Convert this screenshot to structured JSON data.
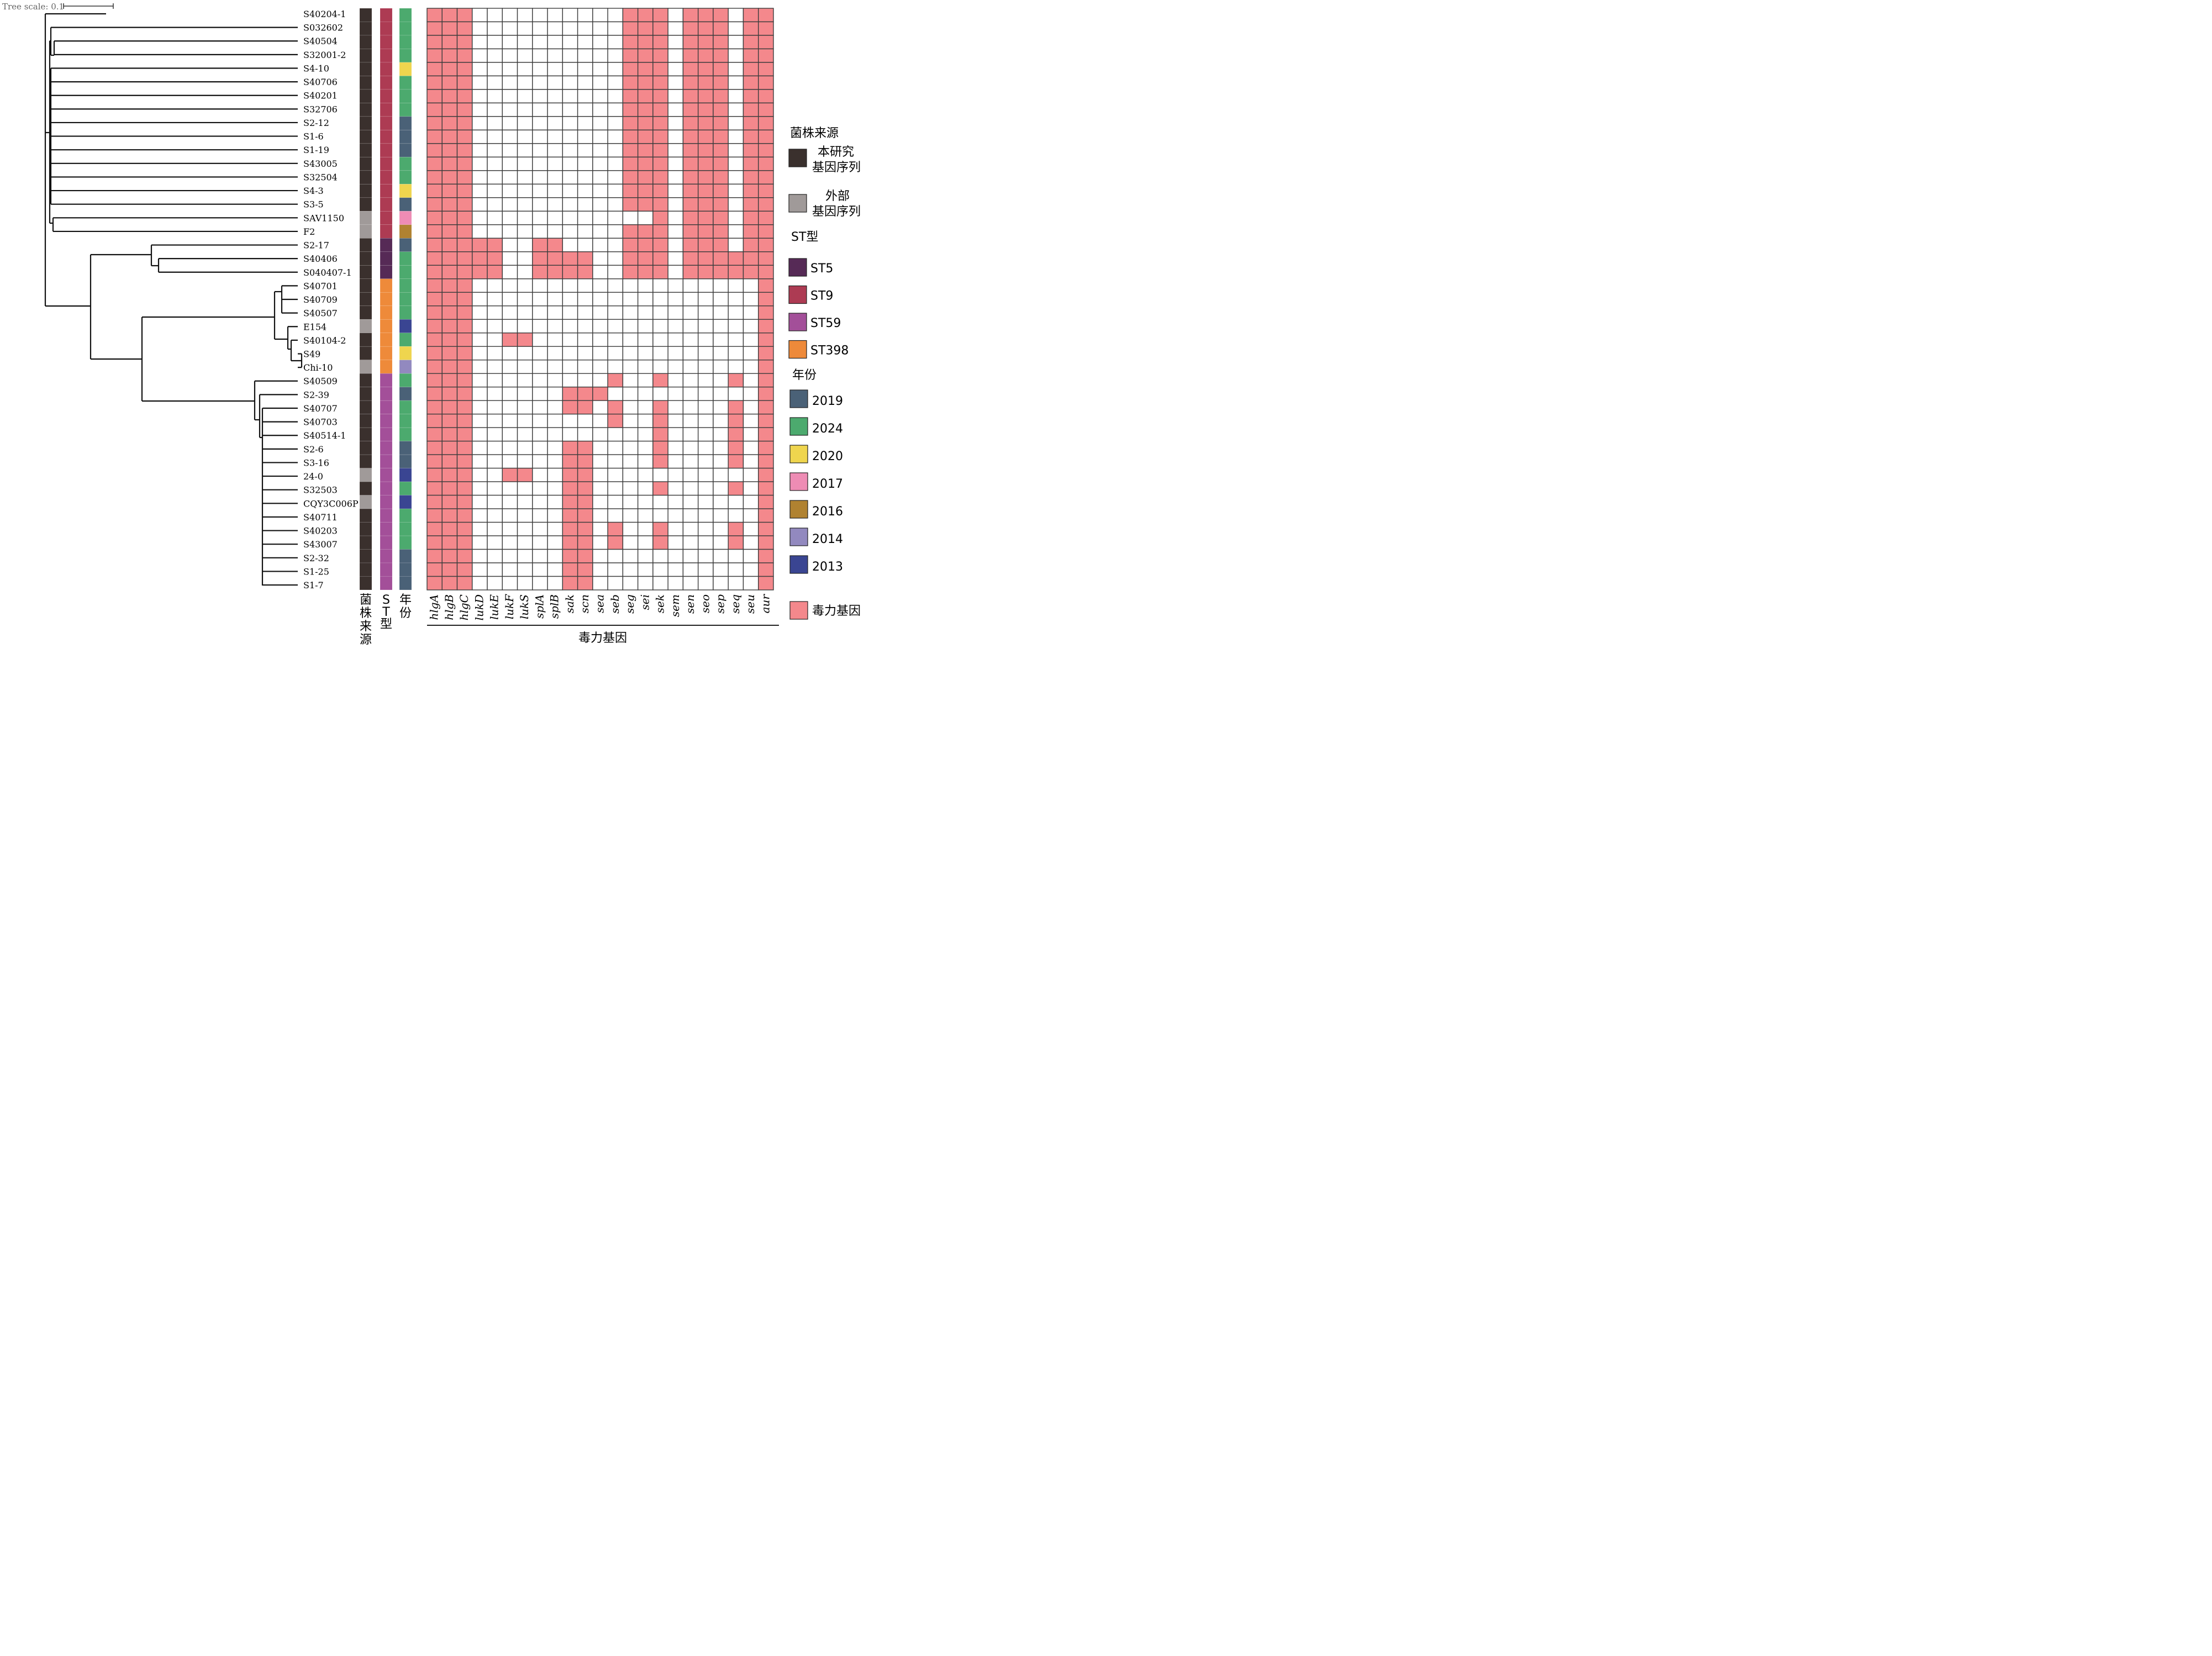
{
  "tree_scale": {
    "label": "Tree scale: 0.1"
  },
  "strains": [
    "S40204-1",
    "S032602",
    "S40504",
    "S32001-2",
    "S4-10",
    "S40706",
    "S40201",
    "S32706",
    "S2-12",
    "S1-6",
    "S1-19",
    "S43005",
    "S32504",
    "S4-3",
    "S3-5",
    "SAV1150",
    "F2",
    "S2-17",
    "S40406",
    "S040407-1",
    "S40701",
    "S40709",
    "S40507",
    "E154",
    "S40104-2",
    "S49",
    "Chi-10",
    "S40509",
    "S2-39",
    "S40707",
    "S40703",
    "S40514-1",
    "S2-6",
    "S3-16",
    "24-0",
    "S32503",
    "CQY3C006P",
    "S40711",
    "S40203",
    "S43007",
    "S2-32",
    "S1-25",
    "S1-7"
  ],
  "strain_source": [
    "study",
    "study",
    "study",
    "study",
    "study",
    "study",
    "study",
    "study",
    "study",
    "study",
    "study",
    "study",
    "study",
    "study",
    "study",
    "external",
    "external",
    "study",
    "study",
    "study",
    "study",
    "study",
    "study",
    "external",
    "study",
    "study",
    "external",
    "study",
    "study",
    "study",
    "study",
    "study",
    "study",
    "study",
    "external",
    "study",
    "external",
    "study",
    "study",
    "study",
    "study",
    "study",
    "study"
  ],
  "st_type": [
    "ST9",
    "ST9",
    "ST9",
    "ST9",
    "ST9",
    "ST9",
    "ST9",
    "ST9",
    "ST9",
    "ST9",
    "ST9",
    "ST9",
    "ST9",
    "ST9",
    "ST9",
    "ST9",
    "ST9",
    "ST5",
    "ST5",
    "ST5",
    "ST398",
    "ST398",
    "ST398",
    "ST398",
    "ST398",
    "ST398",
    "ST398",
    "ST59",
    "ST59",
    "ST59",
    "ST59",
    "ST59",
    "ST59",
    "ST59",
    "ST59",
    "ST59",
    "ST59",
    "ST59",
    "ST59",
    "ST59",
    "ST59",
    "ST59",
    "ST59"
  ],
  "year": [
    "2024",
    "2024",
    "2024",
    "2024",
    "2020",
    "2024",
    "2024",
    "2024",
    "2019",
    "2019",
    "2019",
    "2024",
    "2024",
    "2020",
    "2019",
    "2017",
    "2016",
    "2019",
    "2024",
    "2024",
    "2024",
    "2024",
    "2024",
    "2013",
    "2024",
    "2020",
    "2014",
    "2024",
    "2019",
    "2024",
    "2024",
    "2024",
    "2019",
    "2019",
    "2013",
    "2024",
    "2013",
    "2024",
    "2024",
    "2024",
    "2019",
    "2019",
    "2019"
  ],
  "column_labels": {
    "source": "菌株来源",
    "st": "ST型",
    "year": "年份"
  },
  "genes": [
    "hlgA",
    "hlgB",
    "hlgC",
    "lukD",
    "lukE",
    "lukF",
    "lukS",
    "splA",
    "splB",
    "sak",
    "scn",
    "sea",
    "seb",
    "seg",
    "sei",
    "sek",
    "sem",
    "sen",
    "seo",
    "sep",
    "seq",
    "seu",
    "aur"
  ],
  "gene_axis_label": "毒力基因",
  "matrix": [
    "11100000000001110111011",
    "11100000000001110111011",
    "11100000000001110111011",
    "11100000000001110111011",
    "11100000000001110111011",
    "11100000000001110111011",
    "11100000000001110111011",
    "11100000000001110111011",
    "11100000000001110111011",
    "11100000000001110111011",
    "11100000000001110111011",
    "11100000000001110111011",
    "11100000000001110111011",
    "11100000000001110111011",
    "11100000000001110111011",
    "11100000000000010111011",
    "11100000000001110111011",
    "11111001100001110111011",
    "11111001111001110111111",
    "11111001111001110111111",
    "11100000000000000000001",
    "11100000000000000000001",
    "11100000000000000000001",
    "11100000000000000000001",
    "11100110000000000000001",
    "11100000000000000000001",
    "11100000000000000000001",
    "11100000000010010000101",
    "11100000011100000000001",
    "11100000011010010000101",
    "11100000000010010000101",
    "11100000000000010000101",
    "11100000011000010000101",
    "11100000011000010000101",
    "11100110011000000000001",
    "11100000011000010000101",
    "11100000011000000000001",
    "11100000011000000000001",
    "11100000011010010000101",
    "11100000011010010000101",
    "11100000011000000000001",
    "11100000011000000000001",
    "11100000011000000000001"
  ],
  "legend": {
    "source_title": "菌株来源",
    "source_items": [
      {
        "key": "study",
        "label_lines": [
          "本研究",
          "基因序列"
        ],
        "color": "#3a302d"
      },
      {
        "key": "external",
        "label_lines": [
          "外部",
          "基因序列"
        ],
        "color": "#a09a99"
      }
    ],
    "st_title": "ST型",
    "st_items": [
      {
        "key": "ST5",
        "label": "ST5",
        "color": "#562a56"
      },
      {
        "key": "ST9",
        "label": "ST9",
        "color": "#ad3b53"
      },
      {
        "key": "ST59",
        "label": "ST59",
        "color": "#a34f99"
      },
      {
        "key": "ST398",
        "label": "ST398",
        "color": "#ee8a3a"
      }
    ],
    "year_title": "年份",
    "year_items": [
      {
        "key": "2019",
        "label": "2019",
        "color": "#4a6177"
      },
      {
        "key": "2024",
        "label": "2024",
        "color": "#4caa6e"
      },
      {
        "key": "2020",
        "label": "2020",
        "color": "#efd54e"
      },
      {
        "key": "2017",
        "label": "2017",
        "color": "#ee8cb4"
      },
      {
        "key": "2016",
        "label": "2016",
        "color": "#b08231"
      },
      {
        "key": "2014",
        "label": "2014",
        "color": "#9289bf"
      },
      {
        "key": "2013",
        "label": "2013",
        "color": "#3a4592"
      }
    ],
    "gene_item": {
      "label": "毒力基因",
      "color": "#f4888c"
    }
  },
  "colors": {
    "present": "#f4888c",
    "absent": "#ffffff",
    "grid": "#3d3d3d"
  }
}
